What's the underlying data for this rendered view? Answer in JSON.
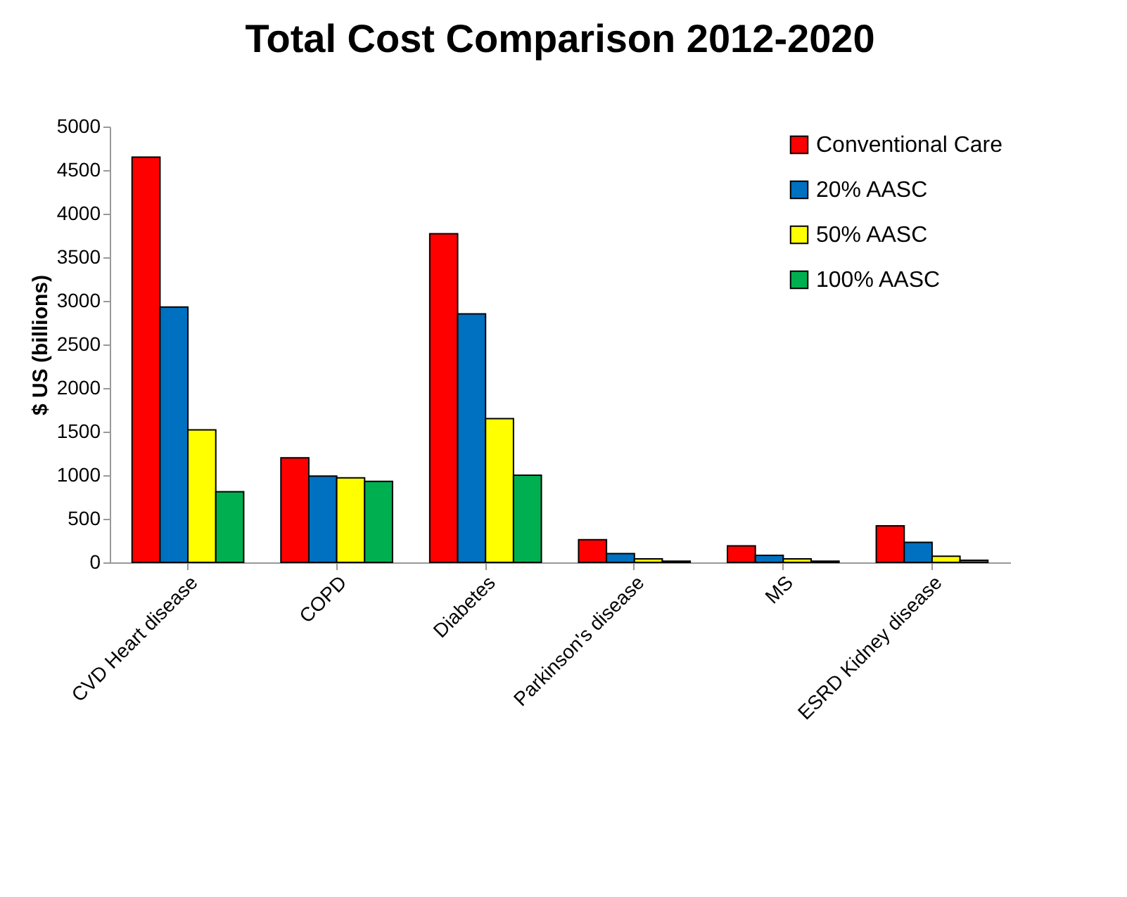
{
  "chart_data": {
    "type": "bar",
    "title": "Total Cost Comparison 2012-2020",
    "ylabel": "$ US (billions)",
    "categories": [
      "CVD Heart disease",
      "COPD",
      "Diabetes",
      "Parkinson's disease",
      "MS",
      "ESRD Kidney disease"
    ],
    "series": [
      {
        "name": "Conventional Care",
        "color": "#ff0000",
        "values": [
          4650,
          1200,
          3770,
          260,
          190,
          420
        ]
      },
      {
        "name": "20% AASC",
        "color": "#0070c0",
        "values": [
          2930,
          990,
          2850,
          100,
          80,
          230
        ]
      },
      {
        "name": "50% AASC",
        "color": "#ffff00",
        "values": [
          1520,
          970,
          1650,
          40,
          40,
          70
        ]
      },
      {
        "name": "100% AASC",
        "color": "#00b050",
        "values": [
          810,
          930,
          1000,
          15,
          15,
          25
        ]
      }
    ],
    "ylim": [
      0,
      5000
    ],
    "yticks": [
      0,
      500,
      1000,
      1500,
      2000,
      2500,
      3000,
      3500,
      4000,
      4500,
      5000
    ],
    "grid": false,
    "legend": "top right"
  }
}
